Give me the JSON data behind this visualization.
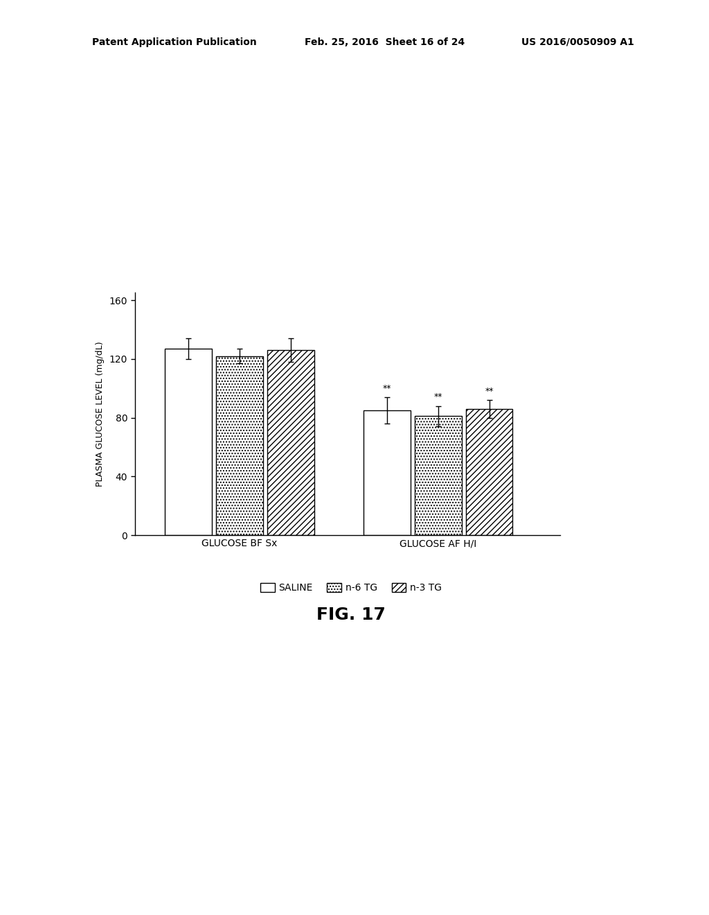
{
  "groups": [
    "GLUCOSE BF Sx",
    "GLUCOSE AF H/I"
  ],
  "series": [
    "SALINE",
    "n-6 TG",
    "n-3 TG"
  ],
  "values": [
    [
      127,
      122,
      126
    ],
    [
      85,
      81,
      86
    ]
  ],
  "errors": [
    [
      7,
      5,
      8
    ],
    [
      9,
      7,
      6
    ]
  ],
  "significance": [
    [
      false,
      false,
      false
    ],
    [
      true,
      true,
      true
    ]
  ],
  "sig_label": "**",
  "ylabel": "PLASMA GLUCOSE LEVEL (mg/dL)",
  "yticks": [
    0,
    40,
    80,
    120,
    160
  ],
  "ylim": [
    0,
    165
  ],
  "fig_label": "FIG. 17",
  "background_color": "#ffffff",
  "bar_edge_color": "#000000",
  "error_color": "#000000",
  "bar_width": 0.18,
  "group_centers": [
    0.32,
    1.02
  ],
  "xlim": [
    -0.05,
    1.45
  ],
  "header_left": "Patent Application Publication",
  "header_mid": "Feb. 25, 2016  Sheet 16 of 24",
  "header_right": "US 2016/0050909 A1"
}
